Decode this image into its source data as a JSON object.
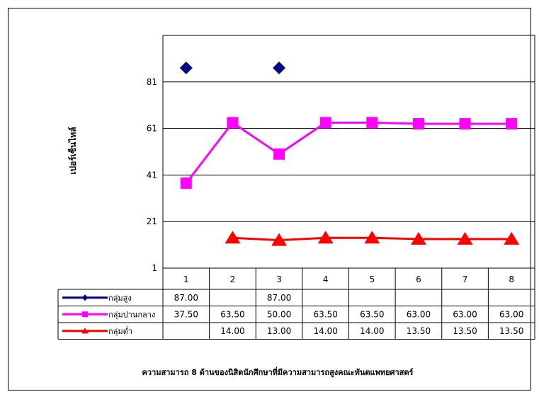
{
  "chart_data": {
    "type": "line",
    "title": "",
    "caption": "ความสามารถ 8 ด้านของนิสิตนักศึกษาที่มีความสามารถสูงคณะทันตแพทยศาสตร์",
    "xlabel": "",
    "ylabel": "เปอร์เซ็นไทล์",
    "categories": [
      "1",
      "2",
      "3",
      "4",
      "5",
      "6",
      "7",
      "8"
    ],
    "y_ticks": [
      "1",
      "21",
      "41",
      "61",
      "81"
    ],
    "ylim": [
      1,
      101
    ],
    "grid": true,
    "legend_placement": "data-table",
    "series": [
      {
        "name": "กลุ่มสูง",
        "color": "#000080",
        "marker": "diamond",
        "values": [
          87,
          null,
          87,
          null,
          null,
          null,
          null,
          null
        ],
        "labels": [
          "87.00",
          "",
          "87.00",
          "",
          "",
          "",
          "",
          ""
        ]
      },
      {
        "name": "กลุ่มปานกลาง",
        "color": "#ff00ff",
        "marker": "square",
        "values": [
          37.5,
          63.5,
          50,
          63.5,
          63.5,
          63,
          63,
          63
        ],
        "labels": [
          "37.50",
          "63.50",
          "50.00",
          "63.50",
          "63.50",
          "63.00",
          "63.00",
          "63.00"
        ]
      },
      {
        "name": "กลุ่มต่ำ",
        "color": "#ff0000",
        "marker": "triangle",
        "values": [
          null,
          14,
          13,
          14,
          14,
          13.5,
          13.5,
          13.5
        ],
        "labels": [
          "",
          "14.00",
          "13.00",
          "14.00",
          "14.00",
          "13.50",
          "13.50",
          "13.50"
        ]
      }
    ]
  }
}
